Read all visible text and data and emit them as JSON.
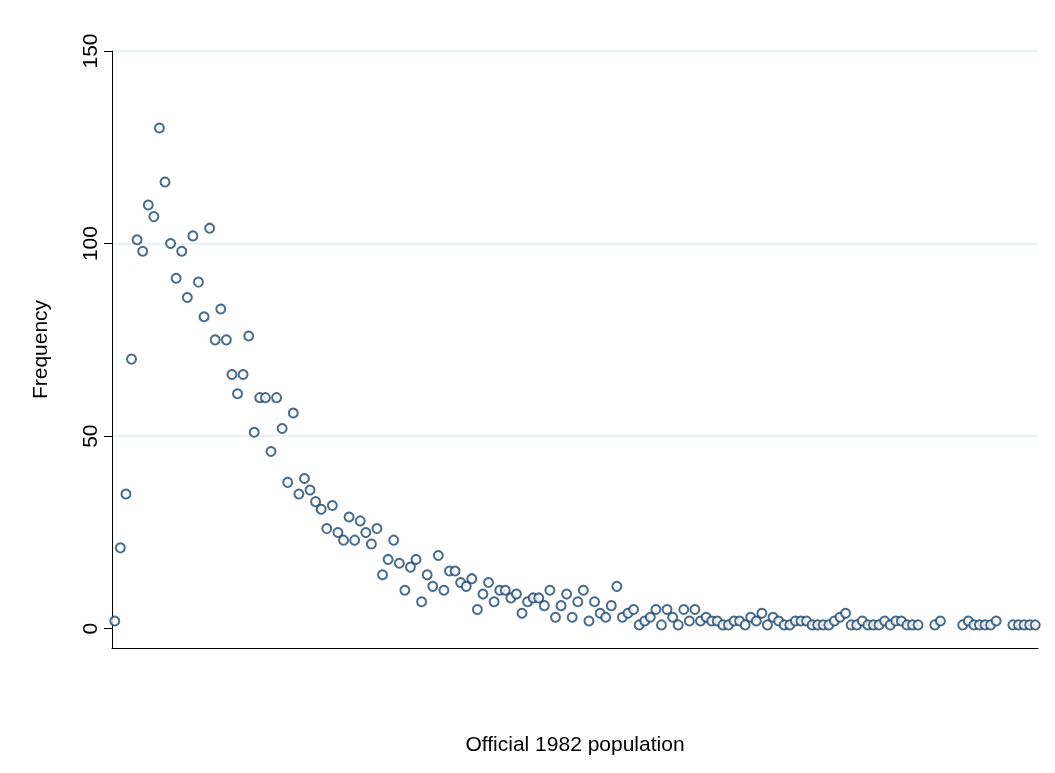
{
  "chart_data": {
    "type": "scatter",
    "xlabel": "Official 1982 population",
    "ylabel": "Frequency",
    "categories": [
      null,
      null,
      null,
      null,
      null,
      null,
      null,
      null,
      null,
      null,
      null,
      null,
      null,
      null,
      null,
      null,
      null,
      null,
      null,
      null,
      null,
      null,
      null,
      null,
      null,
      null,
      null,
      null,
      null,
      null,
      null,
      null,
      null,
      null,
      null,
      null,
      null,
      null,
      null,
      null,
      null,
      null,
      null,
      null,
      null,
      null,
      null,
      null,
      null,
      null,
      null,
      null,
      null,
      null,
      null,
      null,
      null,
      null,
      null,
      null,
      null,
      null,
      null,
      null,
      null,
      null,
      null,
      null,
      null,
      null,
      null,
      null,
      null,
      null,
      null,
      null,
      null,
      null,
      null,
      null,
      null,
      null,
      null,
      null,
      null,
      null,
      null,
      null,
      null,
      null,
      null,
      null,
      null,
      null,
      null,
      null,
      null,
      null,
      null,
      null,
      null,
      null,
      null,
      null,
      null,
      null,
      null,
      null,
      null,
      null,
      null,
      null,
      null,
      null,
      null,
      null,
      null,
      null,
      null,
      null,
      null,
      null,
      null,
      null,
      null,
      null,
      null,
      null,
      null,
      null,
      null,
      null,
      null,
      null,
      null,
      null,
      null,
      null,
      null,
      null,
      null,
      null,
      null,
      null,
      null,
      null,
      null,
      null,
      null,
      null,
      null,
      null,
      null,
      null,
      null,
      null,
      null,
      null,
      null,
      null,
      null,
      null,
      null,
      null,
      null,
      null
    ],
    "series": [
      {
        "color": "#1a476f",
        "values": [
          2,
          21,
          35,
          70,
          101,
          98,
          110,
          107,
          130,
          116,
          100,
          91,
          98,
          86,
          102,
          90,
          81,
          104,
          75,
          83,
          75,
          66,
          61,
          66,
          76,
          51,
          60,
          60,
          46,
          60,
          52,
          38,
          56,
          35,
          39,
          36,
          33,
          31,
          26,
          32,
          25,
          23,
          29,
          23,
          28,
          25,
          22,
          26,
          14,
          18,
          23,
          17,
          10,
          16,
          18,
          7,
          14,
          11,
          19,
          10,
          15,
          15,
          12,
          11,
          13,
          5,
          9,
          12,
          7,
          10,
          10,
          8,
          9,
          4,
          7,
          8,
          8,
          6,
          10,
          3,
          6,
          9,
          3,
          7,
          10,
          2,
          7,
          4,
          3,
          6,
          11,
          3,
          4,
          5,
          1,
          2,
          3,
          5,
          1,
          5,
          3,
          1,
          5,
          2,
          5,
          2,
          3,
          2,
          2,
          1,
          1,
          2,
          2,
          1,
          3,
          2,
          4,
          1,
          3,
          2,
          1,
          1,
          2,
          2,
          2,
          1,
          1,
          1,
          1,
          2,
          3,
          4,
          1,
          1,
          2,
          1,
          1,
          1,
          2,
          1,
          2,
          2,
          1,
          1,
          1,
          null,
          null,
          1,
          2,
          null,
          null,
          null,
          1,
          2,
          1,
          1,
          1,
          1,
          2,
          null,
          null,
          1,
          1,
          1,
          1,
          1
        ]
      }
    ],
    "ylim": [
      -5,
      150
    ],
    "yticks": [
      0,
      50,
      100,
      150
    ],
    "grid": "y",
    "marker": "circle"
  }
}
